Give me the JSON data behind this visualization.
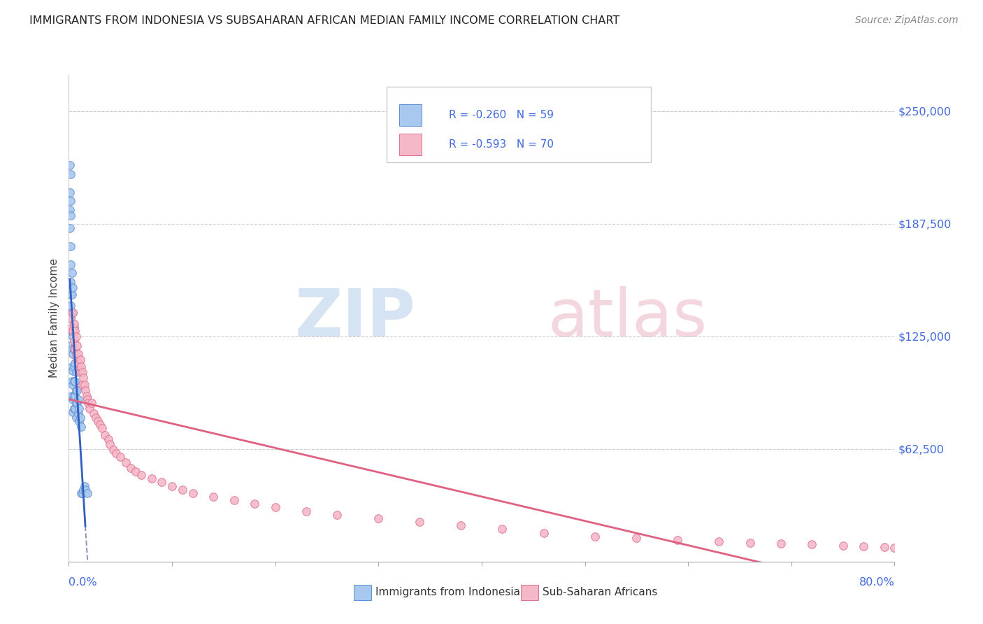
{
  "title": "IMMIGRANTS FROM INDONESIA VS SUBSAHARAN AFRICAN MEDIAN FAMILY INCOME CORRELATION CHART",
  "source": "Source: ZipAtlas.com",
  "ylabel": "Median Family Income",
  "ytick_labels": [
    "$250,000",
    "$187,500",
    "$125,000",
    "$62,500"
  ],
  "ytick_values": [
    250000,
    187500,
    125000,
    62500
  ],
  "ymin": 0,
  "ymax": 270000,
  "xmin": 0.0,
  "xmax": 0.8,
  "color_indonesia": "#A8C8F0",
  "color_subsaharan": "#F5B8C8",
  "color_indonesia_edge": "#6090D0",
  "color_subsaharan_edge": "#E07090",
  "color_indonesia_line": "#3060C0",
  "color_subsaharan_line": "#E06080",
  "color_dashed": "#9090B8",
  "legend_label1": "Immigrants from Indonesia",
  "legend_label2": "Sub-Saharan Africans",
  "legend_r1": "R = -0.260",
  "legend_n1": "N = 59",
  "legend_r2": "R = -0.593",
  "legend_n2": "N = 70",
  "indo_x": [
    0.001,
    0.001,
    0.001,
    0.001,
    0.002,
    0.002,
    0.002,
    0.002,
    0.002,
    0.002,
    0.002,
    0.002,
    0.002,
    0.002,
    0.002,
    0.003,
    0.003,
    0.003,
    0.003,
    0.003,
    0.003,
    0.003,
    0.003,
    0.004,
    0.004,
    0.004,
    0.004,
    0.004,
    0.004,
    0.004,
    0.004,
    0.005,
    0.005,
    0.005,
    0.005,
    0.005,
    0.005,
    0.006,
    0.006,
    0.006,
    0.006,
    0.007,
    0.007,
    0.007,
    0.007,
    0.008,
    0.008,
    0.009,
    0.009,
    0.01,
    0.01,
    0.011,
    0.012,
    0.012,
    0.013,
    0.014,
    0.015,
    0.016,
    0.018
  ],
  "indo_y": [
    220000,
    205000,
    195000,
    185000,
    215000,
    200000,
    192000,
    175000,
    165000,
    155000,
    148000,
    142000,
    135000,
    128000,
    120000,
    160000,
    148000,
    138000,
    128000,
    118000,
    108000,
    100000,
    92000,
    152000,
    138000,
    125000,
    115000,
    106000,
    98000,
    90000,
    83000,
    130000,
    118000,
    108000,
    100000,
    92000,
    85000,
    110000,
    100000,
    92000,
    85000,
    105000,
    95000,
    88000,
    80000,
    95000,
    88000,
    90000,
    82000,
    85000,
    78000,
    80000,
    75000,
    38000,
    38000,
    40000,
    42000,
    40000,
    38000
  ],
  "sub_x": [
    0.002,
    0.003,
    0.004,
    0.004,
    0.005,
    0.005,
    0.006,
    0.006,
    0.007,
    0.007,
    0.008,
    0.008,
    0.009,
    0.009,
    0.01,
    0.011,
    0.011,
    0.012,
    0.013,
    0.013,
    0.014,
    0.015,
    0.016,
    0.017,
    0.018,
    0.019,
    0.02,
    0.022,
    0.024,
    0.026,
    0.028,
    0.03,
    0.032,
    0.035,
    0.038,
    0.04,
    0.043,
    0.046,
    0.05,
    0.055,
    0.06,
    0.065,
    0.07,
    0.08,
    0.09,
    0.1,
    0.11,
    0.12,
    0.14,
    0.16,
    0.18,
    0.2,
    0.23,
    0.26,
    0.3,
    0.34,
    0.38,
    0.42,
    0.46,
    0.51,
    0.55,
    0.59,
    0.63,
    0.66,
    0.69,
    0.72,
    0.75,
    0.77,
    0.79,
    0.8
  ],
  "sub_y": [
    135000,
    130000,
    138000,
    128000,
    132000,
    122000,
    128000,
    118000,
    125000,
    115000,
    120000,
    112000,
    115000,
    108000,
    110000,
    112000,
    105000,
    108000,
    105000,
    98000,
    102000,
    98000,
    95000,
    92000,
    90000,
    88000,
    85000,
    88000,
    82000,
    80000,
    78000,
    76000,
    74000,
    70000,
    68000,
    65000,
    62000,
    60000,
    58000,
    55000,
    52000,
    50000,
    48000,
    46000,
    44000,
    42000,
    40000,
    38000,
    36000,
    34000,
    32000,
    30000,
    28000,
    26000,
    24000,
    22000,
    20000,
    18000,
    16000,
    14000,
    13000,
    12000,
    11000,
    10500,
    10000,
    9500,
    9000,
    8500,
    8000,
    7500
  ]
}
